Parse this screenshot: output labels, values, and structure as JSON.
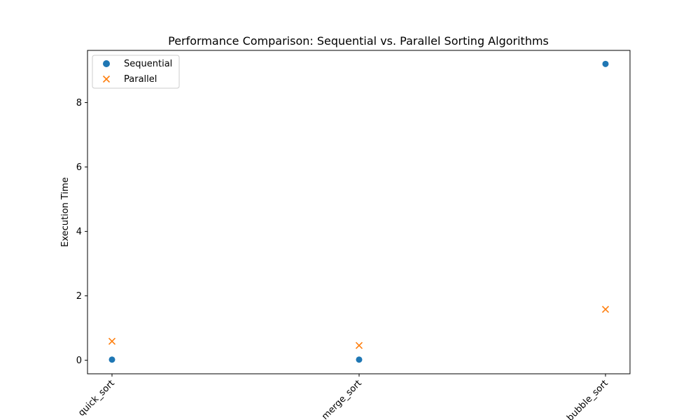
{
  "chart_data": {
    "type": "scatter",
    "title": "Performance Comparison: Sequential vs. Parallel Sorting Algorithms",
    "xlabel": "",
    "ylabel": "Execution Time",
    "categories": [
      "quick_sort",
      "merge_sort",
      "bubble_sort"
    ],
    "series": [
      {
        "name": "Sequential",
        "marker": "circle",
        "color": "#1f77b4",
        "values": [
          0.02,
          0.02,
          9.2
        ]
      },
      {
        "name": "Parallel",
        "marker": "x",
        "color": "#ff7f0e",
        "values": [
          0.59,
          0.46,
          1.58
        ]
      }
    ],
    "ylim": [
      -0.42,
      9.62
    ],
    "yticks": [
      "0",
      "2",
      "4",
      "6",
      "8"
    ],
    "x_tick_rotation_deg": 45,
    "legend": {
      "position": "top-left"
    },
    "grid": false
  }
}
